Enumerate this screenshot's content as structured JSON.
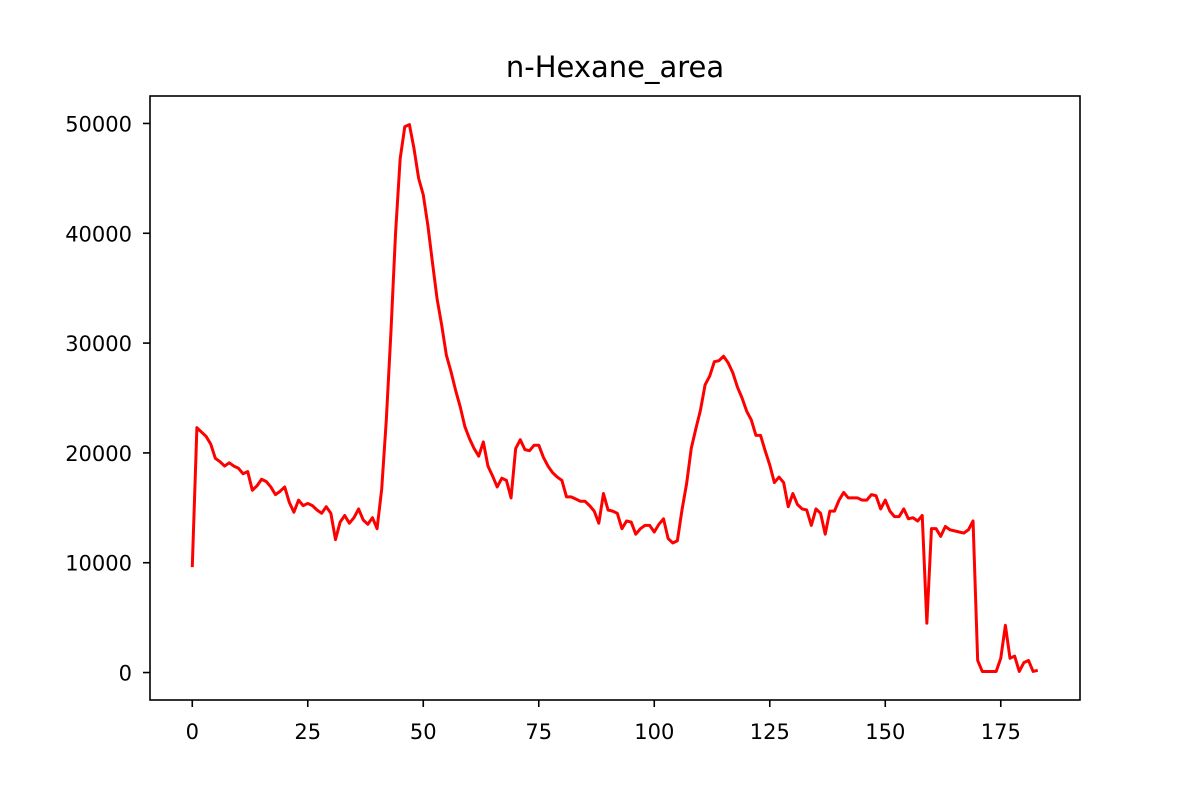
{
  "chart_data": {
    "type": "line",
    "title": "n-Hexane_area",
    "xlabel": "",
    "ylabel": "",
    "xlim": [
      -9.15,
      192.15
    ],
    "ylim": [
      -2500,
      52500
    ],
    "grid": false,
    "color": "#ff0000",
    "x_ticks": [
      0,
      25,
      50,
      75,
      100,
      125,
      150,
      175
    ],
    "x_tick_labels": [
      "0",
      "25",
      "50",
      "75",
      "100",
      "125",
      "150",
      "175"
    ],
    "y_ticks": [
      0,
      10000,
      20000,
      30000,
      40000,
      50000
    ],
    "y_tick_labels": [
      "0",
      "10000",
      "20000",
      "30000",
      "40000",
      "50000"
    ],
    "series": [
      {
        "x": [
          0,
          1,
          2,
          3,
          4,
          5,
          6,
          7,
          8,
          9,
          10,
          11,
          12,
          13,
          14,
          15,
          16,
          17,
          18,
          19,
          20,
          21,
          22,
          23,
          24,
          25,
          26,
          27,
          28,
          29,
          30,
          31,
          32,
          33,
          34,
          35,
          36,
          37,
          38,
          39,
          40,
          41,
          42,
          43,
          44,
          45,
          46,
          47,
          48,
          49,
          50,
          51,
          52,
          53,
          54,
          55,
          56,
          57,
          58,
          59,
          60,
          61,
          62,
          63,
          64,
          65,
          66,
          67,
          68,
          69,
          70,
          71,
          72,
          73,
          74,
          75,
          76,
          77,
          78,
          79,
          80,
          81,
          82,
          83,
          84,
          85,
          86,
          87,
          88,
          89,
          90,
          91,
          92,
          93,
          94,
          95,
          96,
          97,
          98,
          99,
          100,
          101,
          102,
          103,
          104,
          105,
          106,
          107,
          108,
          109,
          110,
          111,
          112,
          113,
          114,
          115,
          116,
          117,
          118,
          119,
          120,
          121,
          122,
          123,
          124,
          125,
          126,
          127,
          128,
          129,
          130,
          131,
          132,
          133,
          134,
          135,
          136,
          137,
          138,
          139,
          140,
          141,
          142,
          143,
          144,
          145,
          146,
          147,
          148,
          149,
          150,
          151,
          152,
          153,
          154,
          155,
          156,
          157,
          158,
          159,
          160,
          161,
          162,
          163,
          164,
          165,
          166,
          167,
          168,
          169,
          170,
          171,
          172,
          173,
          174,
          175,
          176,
          177,
          178,
          179,
          180,
          181,
          182,
          183
        ],
        "values": [
          9600,
          22300,
          21900,
          21500,
          20800,
          19500,
          19200,
          18800,
          19100,
          18800,
          18600,
          18100,
          18300,
          16600,
          17000,
          17600,
          17400,
          16900,
          16200,
          16500,
          16900,
          15500,
          14600,
          15700,
          15200,
          15400,
          15200,
          14800,
          14500,
          15100,
          14500,
          12100,
          13700,
          14300,
          13600,
          14100,
          14900,
          13900,
          13500,
          14100,
          13100,
          16700,
          23000,
          31000,
          40000,
          46800,
          49700,
          49900,
          47700,
          45000,
          43500,
          40700,
          37300,
          34000,
          31600,
          28900,
          27400,
          25700,
          24200,
          22400,
          21300,
          20400,
          19700,
          21000,
          18800,
          17900,
          16900,
          17700,
          17500,
          15900,
          20400,
          21200,
          20300,
          20200,
          20700,
          20700,
          19600,
          18800,
          18200,
          17800,
          17500,
          16000,
          16000,
          15800,
          15600,
          15600,
          15200,
          14700,
          13600,
          16300,
          14800,
          14700,
          14500,
          13100,
          13800,
          13700,
          12600,
          13100,
          13400,
          13400,
          12800,
          13500,
          14000,
          12200,
          11800,
          12000,
          14800,
          17200,
          20400,
          22200,
          23900,
          26200,
          27000,
          28300,
          28400,
          28800,
          28200,
          27300,
          26000,
          25000,
          23800,
          23000,
          21600,
          21600,
          20200,
          18900,
          17300,
          17800,
          17300,
          15100,
          16300,
          15300,
          14900,
          14800,
          13400,
          14900,
          14500,
          12600,
          14700,
          14700,
          15700,
          16400,
          15900,
          15900,
          15900,
          15700,
          15700,
          16200,
          16100,
          14900,
          15700,
          14700,
          14200,
          14200,
          14900,
          14000,
          14100,
          13800,
          14300,
          4500,
          13100,
          13100,
          12400,
          13300,
          13000,
          12900,
          12800,
          12700,
          13000,
          13800,
          1100,
          100,
          100,
          100,
          100,
          1300,
          4300,
          1300,
          1500,
          100,
          900,
          1100,
          100,
          200
        ]
      }
    ]
  }
}
